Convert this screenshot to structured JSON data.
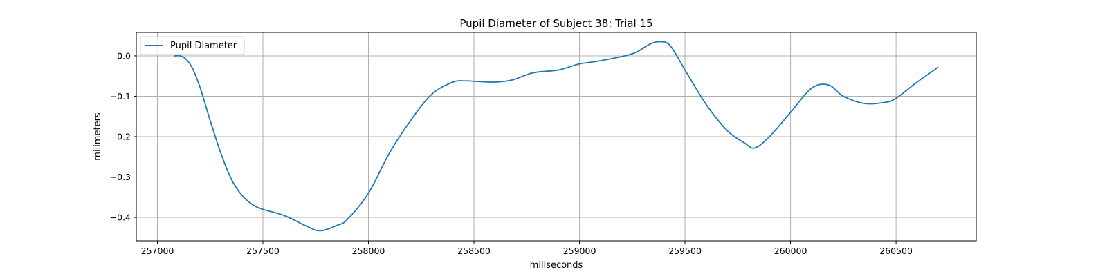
{
  "chart_data": {
    "type": "line",
    "title": "Pupil Diameter of Subject 38: Trial 15",
    "xlabel": "miliseconds",
    "ylabel": "milimeters",
    "xlim": [
      256900,
      260880
    ],
    "ylim": [
      -0.458,
      0.058
    ],
    "xticks": [
      257000,
      257500,
      258000,
      258500,
      259000,
      259500,
      260000,
      260500
    ],
    "yticks": [
      0.0,
      -0.1,
      -0.2,
      -0.3,
      -0.4
    ],
    "ytick_labels": [
      "0.0",
      "−0.1",
      "−0.2",
      "−0.3",
      "−0.4"
    ],
    "grid": true,
    "legend_position": "upper-left",
    "series": [
      {
        "name": "Pupil Diameter",
        "color": "#1f77b4",
        "x": [
          257080,
          257120,
          257160,
          257200,
          257250,
          257300,
          257350,
          257400,
          257450,
          257500,
          257600,
          257700,
          257770,
          257850,
          257900,
          258000,
          258100,
          258200,
          258300,
          258400,
          258460,
          258500,
          258600,
          258680,
          258780,
          258900,
          259000,
          259100,
          259250,
          259330,
          259380,
          259430,
          259500,
          259600,
          259700,
          259780,
          259830,
          259900,
          260000,
          260100,
          260180,
          260250,
          260350,
          260450,
          260500,
          260600,
          260700
        ],
        "y": [
          0.0,
          -0.002,
          -0.025,
          -0.075,
          -0.16,
          -0.24,
          -0.305,
          -0.345,
          -0.368,
          -0.38,
          -0.395,
          -0.42,
          -0.433,
          -0.42,
          -0.405,
          -0.34,
          -0.24,
          -0.16,
          -0.095,
          -0.065,
          -0.062,
          -0.063,
          -0.065,
          -0.06,
          -0.042,
          -0.035,
          -0.02,
          -0.012,
          0.005,
          0.028,
          0.035,
          0.025,
          -0.035,
          -0.12,
          -0.185,
          -0.215,
          -0.228,
          -0.2,
          -0.14,
          -0.08,
          -0.072,
          -0.1,
          -0.118,
          -0.115,
          -0.105,
          -0.065,
          -0.028
        ]
      }
    ]
  }
}
